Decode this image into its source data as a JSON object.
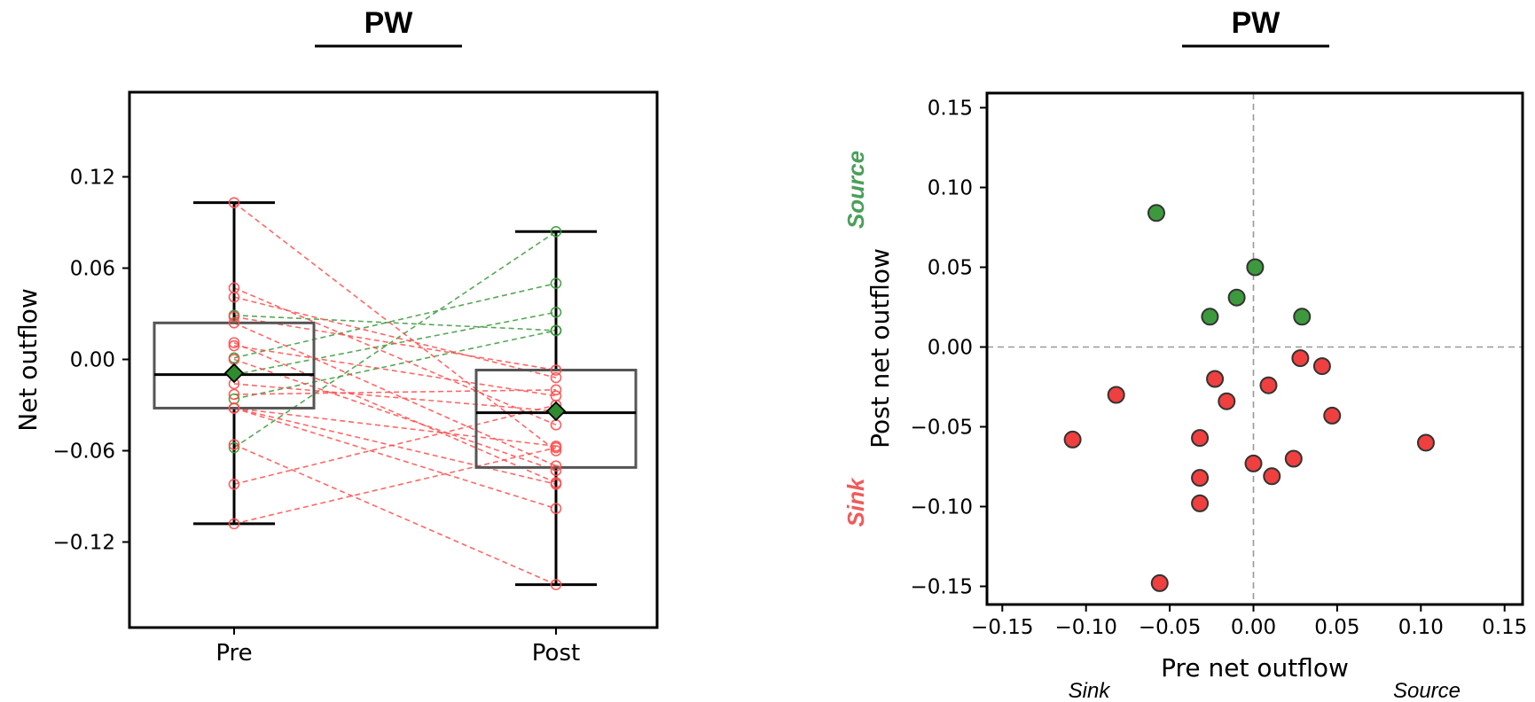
{
  "chart_data": [
    {
      "type": "box",
      "title": "PW",
      "xlabel": "",
      "ylabel": "Net outflow",
      "categories": [
        "Pre",
        "Post"
      ],
      "ylim": [
        -0.16,
        0.16
      ],
      "yticks": [
        0.12,
        0.06,
        0.0,
        -0.06,
        -0.12
      ],
      "ytick_labels": [
        "0.12",
        "0.06",
        "0.00",
        "−0.06",
        "−0.12"
      ],
      "boxes": [
        {
          "category": "Pre",
          "q1": -0.032,
          "median": -0.01,
          "q3": 0.024,
          "whisker_low": -0.108,
          "whisker_high": 0.103,
          "mean": -0.009
        },
        {
          "category": "Post",
          "q1": -0.071,
          "median": -0.035,
          "q3": -0.007,
          "whisker_low": -0.148,
          "whisker_high": 0.084,
          "mean": -0.034
        }
      ],
      "pairs": [
        {
          "pre": -0.058,
          "post": 0.084,
          "group": "Source"
        },
        {
          "pre": -0.108,
          "post": -0.058,
          "group": "Sink"
        },
        {
          "pre": 0.001,
          "post": 0.05,
          "group": "Source"
        },
        {
          "pre": -0.01,
          "post": 0.031,
          "group": "Source"
        },
        {
          "pre": -0.026,
          "post": 0.019,
          "group": "Source"
        },
        {
          "pre": 0.029,
          "post": 0.019,
          "group": "Source"
        },
        {
          "pre": -0.082,
          "post": -0.03,
          "group": "Sink"
        },
        {
          "pre": 0.028,
          "post": -0.007,
          "group": "Sink"
        },
        {
          "pre": 0.041,
          "post": -0.012,
          "group": "Sink"
        },
        {
          "pre": -0.023,
          "post": -0.02,
          "group": "Sink"
        },
        {
          "pre": -0.016,
          "post": -0.034,
          "group": "Sink"
        },
        {
          "pre": 0.009,
          "post": -0.024,
          "group": "Sink"
        },
        {
          "pre": -0.032,
          "post": -0.057,
          "group": "Sink"
        },
        {
          "pre": 0.047,
          "post": -0.043,
          "group": "Sink"
        },
        {
          "pre": 0.103,
          "post": -0.06,
          "group": "Sink"
        },
        {
          "pre": -0.032,
          "post": -0.082,
          "group": "Sink"
        },
        {
          "pre": -0.032,
          "post": -0.098,
          "group": "Sink"
        },
        {
          "pre": 0.011,
          "post": -0.081,
          "group": "Sink"
        },
        {
          "pre": 0.024,
          "post": -0.07,
          "group": "Sink"
        },
        {
          "pre": 0.0,
          "post": -0.073,
          "group": "Sink"
        },
        {
          "pre": -0.056,
          "post": -0.148,
          "group": "Sink"
        }
      ],
      "colors": {
        "source": "#3a9a3a",
        "sink": "#ff4d4d",
        "mean_marker": "#2e8b2e"
      }
    },
    {
      "type": "scatter",
      "title": "PW",
      "xlabel": "Pre net outflow",
      "ylabel": "Post net outflow",
      "xlim": [
        -0.16,
        0.16
      ],
      "ylim": [
        -0.16,
        0.16
      ],
      "xticks": [
        -0.15,
        -0.1,
        -0.05,
        0.0,
        0.05,
        0.1,
        0.15
      ],
      "xtick_labels": [
        "−0.15",
        "−0.10",
        "−0.05",
        "0.00",
        "0.05",
        "0.10",
        "0.15"
      ],
      "yticks": [
        0.15,
        0.1,
        0.05,
        0.0,
        -0.05,
        -0.1,
        -0.15
      ],
      "ytick_labels": [
        "0.15",
        "0.10",
        "0.05",
        "0.00",
        "−0.05",
        "−0.10",
        "−0.15"
      ],
      "annotations": {
        "x_low": "Sink",
        "x_high": "Source",
        "y_high": "Source",
        "y_low": "Sink"
      },
      "reference_lines": {
        "x": 0,
        "y": 0,
        "style": "dashed"
      },
      "colors": {
        "source": "#3c9a3c",
        "sink": "#ef3f3f",
        "source_label": "#4aa05a",
        "sink_label": "#f05a5a"
      }
    }
  ]
}
